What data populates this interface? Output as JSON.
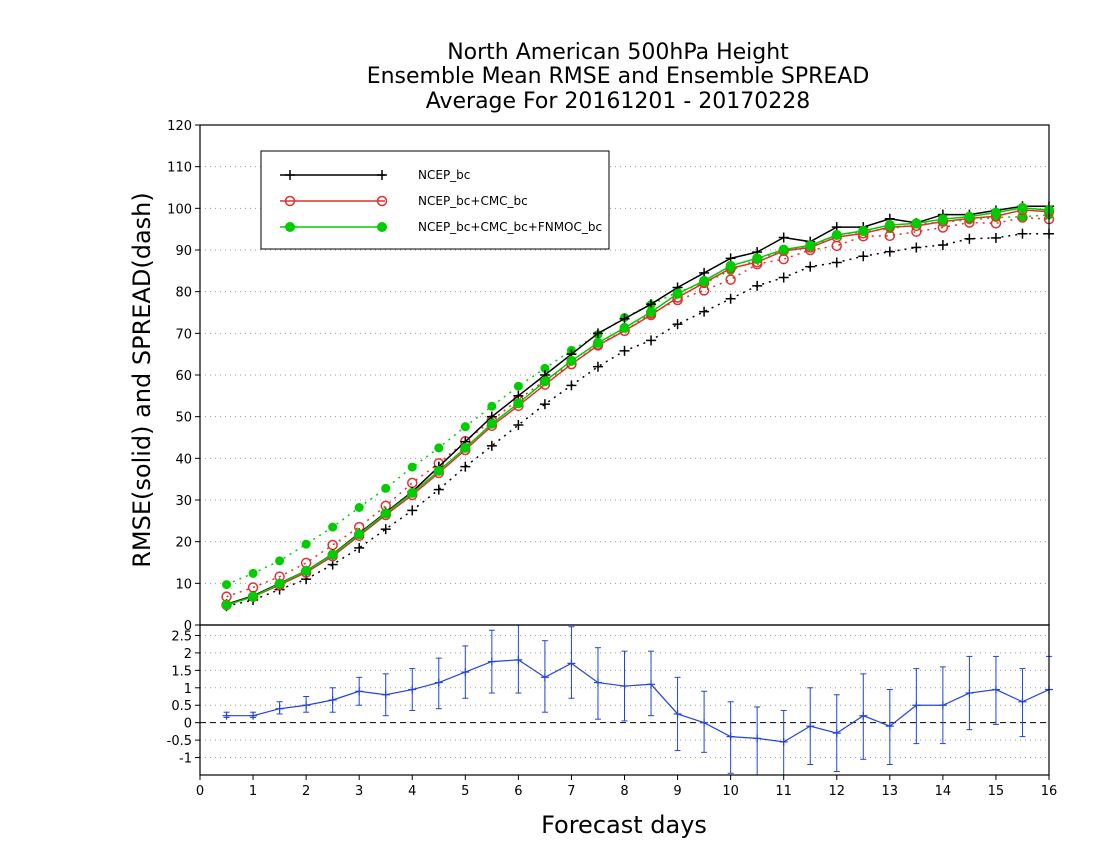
{
  "chart_data": [
    {
      "type": "line",
      "title": [
        "North American 500hPa Height",
        "Ensemble Mean RMSE and Ensemble SPREAD",
        "Average For 20161201 - 20170228"
      ],
      "xlabel": "Forecast days",
      "ylabel": "RMSE(solid) and SPREAD(dash)",
      "xlim": [
        0,
        16
      ],
      "ylim": [
        0,
        120
      ],
      "x_ticks": [
        "0",
        "1",
        "2",
        "3",
        "4",
        "5",
        "6",
        "7",
        "8",
        "9",
        "10",
        "11",
        "12",
        "13",
        "14",
        "15",
        "16"
      ],
      "y_ticks": [
        "0",
        "10",
        "20",
        "30",
        "40",
        "50",
        "60",
        "70",
        "80",
        "90",
        "100",
        "110",
        "120"
      ],
      "grid": true,
      "legend": "top-left",
      "x": [
        0.5,
        1,
        1.5,
        2,
        2.5,
        3,
        3.5,
        4,
        4.5,
        5,
        5.5,
        6,
        6.5,
        7,
        7.5,
        8,
        8.5,
        9,
        9.5,
        10,
        10.5,
        11,
        11.5,
        12,
        12.5,
        13,
        13.5,
        14,
        14.5,
        15,
        15.5,
        16
      ],
      "series": [
        {
          "name": "NCEP_bc",
          "role": "rmse",
          "color": "#000000",
          "marker": "plus",
          "dash": false,
          "values": [
            5,
            7,
            10,
            13,
            17,
            22,
            27,
            32,
            38,
            44,
            50,
            55,
            60,
            65,
            70,
            73.5,
            77,
            81,
            84.5,
            88,
            89.5,
            93,
            92,
            95.5,
            95.5,
            97.5,
            96.5,
            98.5,
            98.5,
            99.5,
            100.5,
            100.5
          ]
        },
        {
          "name": "NCEP_bc+CMC_bc",
          "role": "rmse",
          "color": "#e03030",
          "marker": "open-circle",
          "dash": false,
          "values": [
            4.8,
            6.8,
            9.6,
            12.6,
            16.5,
            21.4,
            26.4,
            31.2,
            36.5,
            42,
            47.8,
            52.6,
            57.7,
            62.6,
            67.1,
            70.6,
            74.4,
            78.6,
            82.1,
            85.6,
            87.1,
            89.8,
            90.6,
            93.1,
            94,
            95.5,
            95.8,
            96.8,
            97.6,
            98.1,
            99.6,
            99.2
          ]
        },
        {
          "name": "NCEP_bc+CMC_bc+FNMOC_bc",
          "role": "rmse",
          "color": "#00cc00",
          "marker": "filled-circle",
          "dash": false,
          "values": [
            4.8,
            6.8,
            9.9,
            13,
            16.9,
            21.8,
            26.8,
            31.7,
            37,
            42.5,
            48.3,
            53.2,
            58.5,
            63.4,
            67.7,
            71.3,
            75.1,
            79.5,
            82.6,
            86.2,
            88,
            90.1,
            91.1,
            93.6,
            94.6,
            96,
            96.4,
            97.4,
            98,
            99,
            100.1,
            99.6
          ]
        },
        {
          "name": "NCEP_bc",
          "role": "spread",
          "color": "#000000",
          "marker": "plus",
          "dash": true,
          "values": [
            4.5,
            6,
            8.5,
            11,
            14.5,
            18.5,
            23,
            27.5,
            32.5,
            38,
            43,
            48,
            53,
            57.5,
            62,
            65.8,
            68.3,
            72.2,
            75.2,
            78.3,
            81.4,
            83.4,
            86,
            87,
            88.5,
            89.6,
            90.6,
            91.2,
            92.7,
            92.9,
            93.9,
            93.9
          ]
        },
        {
          "name": "NCEP_bc+CMC_bc",
          "role": "spread",
          "color": "#e03030",
          "marker": "open-circle",
          "dash": true,
          "values": [
            6.8,
            9,
            11.6,
            14.9,
            19.2,
            23.5,
            28.6,
            34.1,
            38.8,
            44.1,
            49.1,
            54.1,
            58.7,
            62.6,
            67.3,
            70.6,
            74.8,
            78,
            80.3,
            82.9,
            86.6,
            87.8,
            90,
            91,
            93.3,
            93.4,
            94.4,
            95.4,
            96.6,
            96.4,
            97.8,
            97.4
          ]
        },
        {
          "name": "NCEP_bc+CMC_bc+FNMOC_bc",
          "role": "spread",
          "color": "#00cc00",
          "marker": "filled-circle",
          "dash": true,
          "values": [
            9.7,
            12.4,
            15.4,
            19.4,
            23.5,
            28.2,
            32.8,
            37.9,
            42.5,
            47.6,
            52.5,
            57.3,
            61.6,
            65.9,
            69.7,
            73.8,
            76.9,
            79.9,
            82,
            85.1,
            87.7,
            90,
            90.8,
            93.6,
            94.4,
            95.1,
            96.2,
            96.7,
            97.2,
            97.8,
            98,
            98.4
          ]
        }
      ]
    },
    {
      "type": "line",
      "role": "difference-panel",
      "xlim": [
        0,
        16
      ],
      "ylim": [
        -1.5,
        2.8
      ],
      "y_ticks": [
        "-1",
        "-0.5",
        "0",
        "0.5",
        "1",
        "1.5",
        "2",
        "2.5"
      ],
      "color": "#2244dd",
      "reference_line": 0,
      "x": [
        0.5,
        1,
        1.5,
        2,
        2.5,
        3,
        3.5,
        4,
        4.5,
        5,
        5.5,
        6,
        6.5,
        7,
        7.5,
        8,
        8.5,
        9,
        9.5,
        10,
        10.5,
        11,
        11.5,
        12,
        12.5,
        13,
        13.5,
        14,
        14.5,
        15,
        15.5,
        16
      ],
      "values": [
        0.2,
        0.2,
        0.4,
        0.5,
        0.65,
        0.9,
        0.8,
        0.95,
        1.15,
        1.45,
        1.75,
        1.8,
        1.3,
        1.7,
        1.15,
        1.05,
        1.1,
        0.25,
        0,
        -0.4,
        -0.45,
        -0.55,
        -0.1,
        -0.3,
        0.2,
        -0.1,
        0.5,
        0.5,
        0.85,
        0.95,
        0.6,
        0.95
      ],
      "err_low": [
        0.15,
        0.15,
        0.25,
        0.3,
        0.3,
        0.5,
        0.2,
        0.35,
        0.4,
        0.7,
        0.85,
        0.85,
        0.3,
        0.7,
        0.1,
        0.05,
        0.2,
        -0.8,
        -0.85,
        -1.45,
        -1.5,
        -1.5,
        -1.2,
        -1.4,
        -1.05,
        -1.2,
        -0.6,
        -0.6,
        -0.2,
        -0.05,
        -0.4,
        0.95
      ],
      "err_high": [
        0.3,
        0.3,
        0.6,
        0.75,
        1,
        1.3,
        1.4,
        1.55,
        1.85,
        2.2,
        2.65,
        2.8,
        2.35,
        2.75,
        2.15,
        2.05,
        2.05,
        1.3,
        0.9,
        0.6,
        0.45,
        0.35,
        1.0,
        0.8,
        1.4,
        0.95,
        1.55,
        1.6,
        1.9,
        1.9,
        1.55,
        1.9
      ]
    }
  ]
}
